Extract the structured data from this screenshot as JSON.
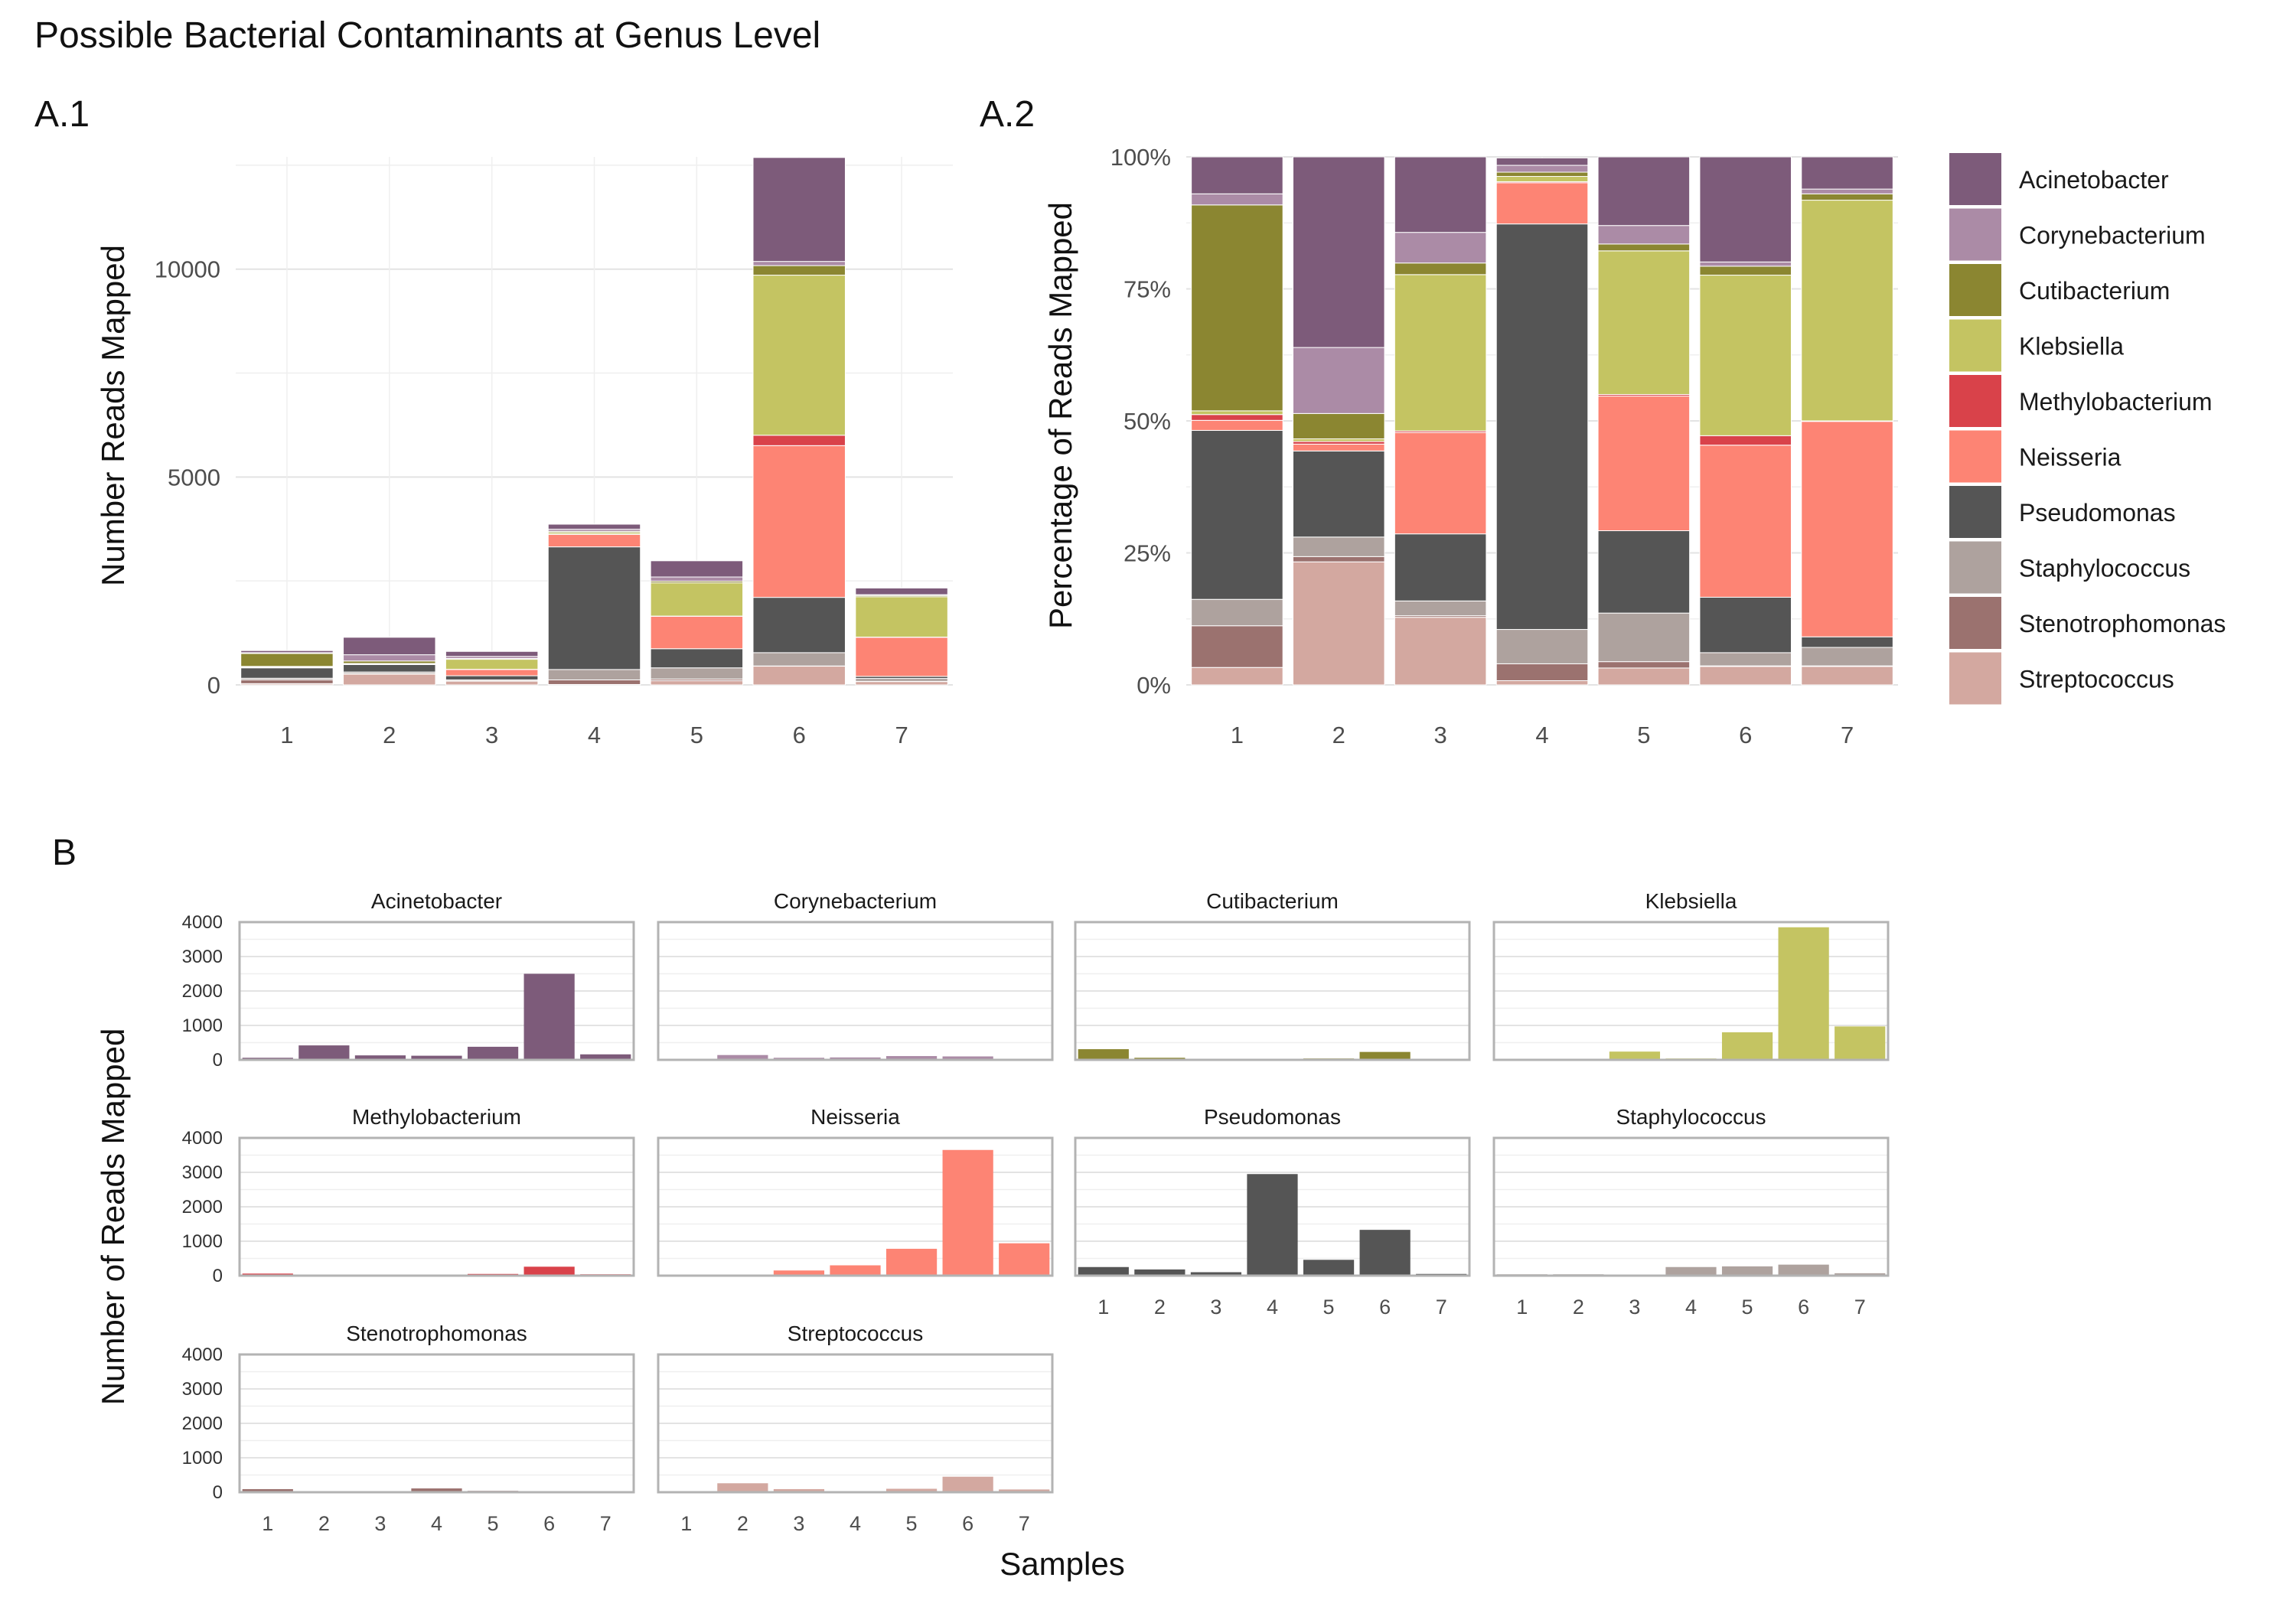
{
  "title": "Possible Bacterial Contaminants at Genus Level",
  "panel_labels": {
    "a1": "A.1",
    "a2": "A.2",
    "b": "B"
  },
  "colors": {
    "Acinetobacter": "#7d5b7a",
    "Corynebacterium": "#ab8ba6",
    "Cutibacterium": "#8b8631",
    "Klebsiella": "#c4c462",
    "Methylobacterium": "#d9424a",
    "Neisseria": "#fd8474",
    "Pseudomonas": "#555555",
    "Staphylococcus": "#aea29e",
    "Stenotrophomonas": "#9b726f",
    "Streptococcus": "#d3a8a0"
  },
  "chart_data": [
    {
      "id": "A1",
      "type": "bar",
      "stacked": true,
      "title": "A.1",
      "xlabel": "",
      "ylabel": "Number Reads Mapped",
      "ylim": [
        0,
        12700
      ],
      "yticks": [
        0,
        5000,
        10000
      ],
      "ytick_labels": [
        "0",
        "5000",
        "10000"
      ],
      "categories": [
        "1",
        "2",
        "3",
        "4",
        "5",
        "6",
        "7"
      ],
      "series": [
        {
          "name": "Streptococcus",
          "values": [
            30,
            260,
            90,
            10,
            100,
            450,
            80
          ]
        },
        {
          "name": "Stenotrophomonas",
          "values": [
            90,
            10,
            5,
            110,
            40,
            5,
            5
          ]
        },
        {
          "name": "Staphylococcus",
          "values": [
            40,
            40,
            25,
            250,
            270,
            320,
            70
          ]
        },
        {
          "name": "Pseudomonas",
          "values": [
            250,
            180,
            100,
            2950,
            460,
            1330,
            50
          ]
        },
        {
          "name": "Neisseria",
          "values": [
            15,
            15,
            150,
            300,
            780,
            3650,
            940
          ]
        },
        {
          "name": "Methylobacterium",
          "values": [
            15,
            5,
            5,
            5,
            5,
            250,
            5
          ]
        },
        {
          "name": "Klebsiella",
          "values": [
            5,
            5,
            240,
            40,
            800,
            3850,
            970
          ]
        },
        {
          "name": "Cutibacterium",
          "values": [
            310,
            60,
            20,
            30,
            40,
            230,
            30
          ]
        },
        {
          "name": "Corynebacterium",
          "values": [
            20,
            150,
            50,
            50,
            100,
            100,
            20
          ]
        },
        {
          "name": "Acinetobacter",
          "values": [
            50,
            420,
            120,
            120,
            390,
            2500,
            160
          ]
        }
      ]
    },
    {
      "id": "A2",
      "type": "bar",
      "stacked": true,
      "percent": true,
      "title": "A.2",
      "xlabel": "",
      "ylabel": "Percentage of Reads Mapped",
      "ylim": [
        0,
        100
      ],
      "yticks": [
        0,
        25,
        50,
        75,
        100
      ],
      "ytick_labels": [
        "0%",
        "25%",
        "50%",
        "75%",
        "100%"
      ],
      "categories": [
        "1",
        "2",
        "3",
        "4",
        "5",
        "6",
        "7"
      ],
      "series": [
        {
          "name": "Streptococcus",
          "values": [
            3.3,
            23.3,
            12.8,
            0.8,
            3.2,
            3.5,
            3.5
          ]
        },
        {
          "name": "Stenotrophomonas",
          "values": [
            7.9,
            1.0,
            0.3,
            3.2,
            1.2,
            0.1,
            0.1
          ]
        },
        {
          "name": "Staphylococcus",
          "values": [
            5.0,
            3.7,
            2.8,
            6.5,
            9.2,
            2.5,
            3.5
          ]
        },
        {
          "name": "Pseudomonas",
          "values": [
            32.0,
            16.3,
            12.7,
            76.8,
            15.6,
            10.5,
            2.0
          ]
        },
        {
          "name": "Neisseria",
          "values": [
            1.9,
            1.3,
            19.2,
            7.8,
            25.5,
            28.8,
            40.8
          ]
        },
        {
          "name": "Methylobacterium",
          "values": [
            1.1,
            0.5,
            0.3,
            0.2,
            0.3,
            1.8,
            0.1
          ]
        },
        {
          "name": "Klebsiella",
          "values": [
            0.7,
            0.5,
            29.6,
            1.0,
            27.2,
            30.4,
            41.8
          ]
        },
        {
          "name": "Cutibacterium",
          "values": [
            39.0,
            4.8,
            2.2,
            0.8,
            1.3,
            1.7,
            1.2
          ]
        },
        {
          "name": "Corynebacterium",
          "values": [
            2.1,
            12.5,
            5.8,
            1.3,
            3.5,
            0.8,
            0.9
          ]
        },
        {
          "name": "Acinetobacter",
          "values": [
            7.0,
            36.1,
            14.3,
            1.4,
            13.0,
            19.9,
            6.1
          ]
        }
      ]
    },
    {
      "id": "B",
      "type": "bar",
      "faceted": true,
      "title": "B",
      "xlabel": "Samples",
      "ylabel": "Number of Reads Mapped",
      "ylim": [
        0,
        4000
      ],
      "yticks": [
        0,
        1000,
        2000,
        3000,
        4000
      ],
      "ytick_labels": [
        "0",
        "1000",
        "2000",
        "3000",
        "4000"
      ],
      "categories": [
        "1",
        "2",
        "3",
        "4",
        "5",
        "6",
        "7"
      ],
      "facets": [
        {
          "name": "Acinetobacter",
          "values": [
            60,
            420,
            130,
            120,
            380,
            2500,
            160
          ]
        },
        {
          "name": "Corynebacterium",
          "values": [
            20,
            140,
            60,
            70,
            110,
            100,
            20
          ]
        },
        {
          "name": "Cutibacterium",
          "values": [
            310,
            60,
            20,
            30,
            40,
            230,
            30
          ]
        },
        {
          "name": "Klebsiella",
          "values": [
            5,
            5,
            240,
            40,
            800,
            3850,
            970
          ]
        },
        {
          "name": "Methylobacterium",
          "values": [
            60,
            5,
            5,
            5,
            50,
            260,
            40
          ]
        },
        {
          "name": "Neisseria",
          "values": [
            15,
            15,
            150,
            300,
            780,
            3650,
            940
          ]
        },
        {
          "name": "Pseudomonas",
          "values": [
            250,
            180,
            100,
            2950,
            460,
            1330,
            50
          ]
        },
        {
          "name": "Staphylococcus",
          "values": [
            40,
            40,
            25,
            250,
            270,
            320,
            70
          ]
        },
        {
          "name": "Stenotrophomonas",
          "values": [
            90,
            10,
            5,
            110,
            40,
            5,
            5
          ]
        },
        {
          "name": "Streptococcus",
          "values": [
            30,
            260,
            90,
            10,
            100,
            450,
            80
          ]
        }
      ]
    }
  ],
  "legend": {
    "items": [
      "Acinetobacter",
      "Corynebacterium",
      "Cutibacterium",
      "Klebsiella",
      "Methylobacterium",
      "Neisseria",
      "Pseudomonas",
      "Staphylococcus",
      "Stenotrophomonas",
      "Streptococcus"
    ]
  }
}
